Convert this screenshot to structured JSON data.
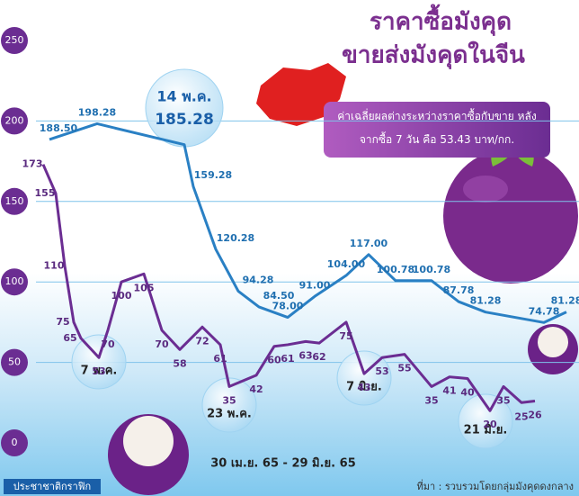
{
  "chart_data": {
    "type": "line",
    "title": "ราคาซื้อมังคุด",
    "subtitle": "ขายส่งมังคุดในจีน",
    "note": "ค่าเฉลี่ยผลต่างระหว่างราคาซื้อกับขาย หลังจากซื้อ 7 วัน คือ 53.43 บาท/กก.",
    "highlight": "14 พ.ค.",
    "date_range": "30 เม.ย. 65 - 29 มิ.ย. 65",
    "date_markers": [
      "7 พ.ค.",
      "23 พ.ค.",
      "7 มิ.ย.",
      "21 มิ.ย."
    ],
    "credit": "ประชาชาติกราฟิก",
    "source": "ที่มา : รวบรวมโดยกลุ่มมังคุดดงกลาง",
    "ylim": [
      0,
      250
    ],
    "yticks": [
      0,
      50,
      100,
      150,
      200,
      250
    ],
    "grid": true,
    "series": [
      {
        "color": "#2a80c4",
        "values": [
          188.5,
          198.28,
          185.28,
          159.28,
          120.28,
          94.28,
          84.5,
          78,
          91,
          104,
          117,
          100.78,
          100.78,
          87.78,
          81.28,
          74.78,
          81.28
        ],
        "value_labels": [
          "188.50",
          "198.28",
          "185.28",
          "159.28",
          "120.28",
          "94.28",
          "84.50",
          "78.00",
          "91.00",
          "104.00",
          "117.00",
          "100.78",
          "100.78",
          "87.78",
          "81.28",
          "74.78",
          "81.28"
        ]
      },
      {
        "color": "#6b2d92",
        "values": [
          173,
          155,
          110,
          75,
          65,
          53,
          70,
          100,
          105,
          70,
          58,
          72,
          61,
          35,
          42,
          60,
          61,
          63,
          62,
          75,
          43,
          53,
          55,
          35,
          41,
          40,
          20,
          35,
          25,
          26
        ]
      }
    ]
  }
}
